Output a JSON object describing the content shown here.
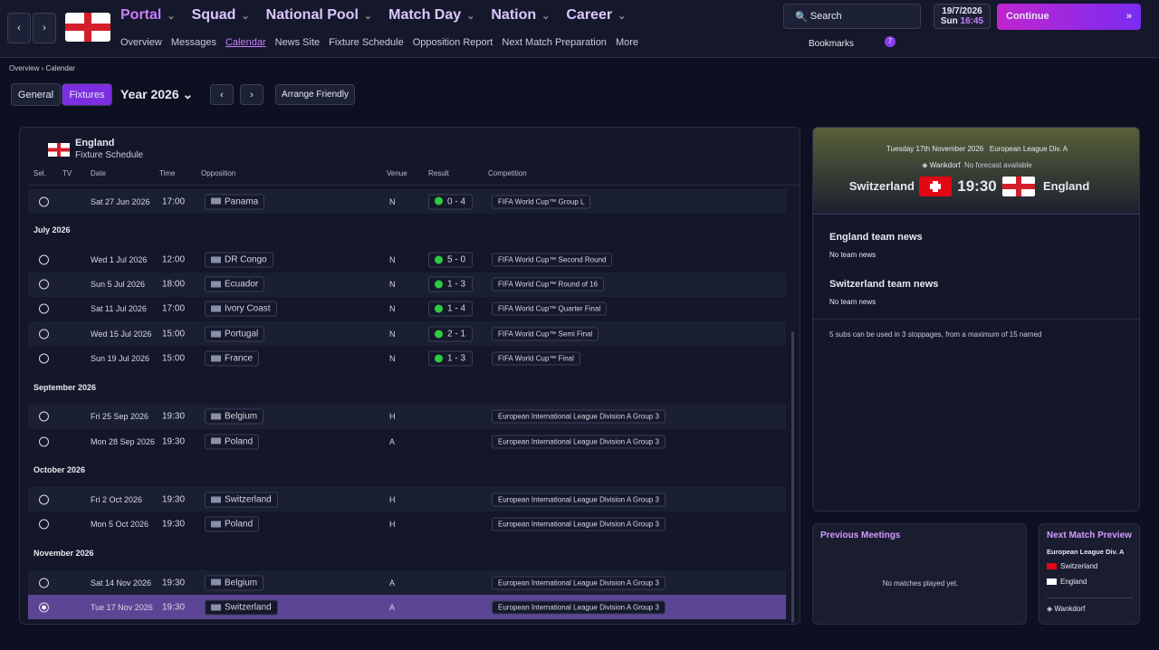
{
  "nav": {
    "primary": [
      "Portal",
      "Squad",
      "National Pool",
      "Match Day",
      "Nation",
      "Career"
    ],
    "secondary": [
      "Overview",
      "Messages",
      "Calendar",
      "News Site",
      "Fixture Schedule",
      "Opposition Report",
      "Next Match Preparation",
      "More"
    ],
    "search": "Search",
    "date": "19/7/2026",
    "day": "Sun",
    "time": "16:45",
    "continue": "Continue",
    "bookmarks": "Bookmarks",
    "badge": "7"
  },
  "breadcrumb": [
    "Overview",
    "Calendar"
  ],
  "toolbar": {
    "tabs": [
      "General",
      "Fixtures"
    ],
    "year": "Year 2026",
    "arrange": "Arrange Friendly"
  },
  "schedule": {
    "team": "England",
    "subtitle": "Fixture Schedule",
    "columns": [
      "Sel.",
      "TV",
      "Date",
      "Time",
      "Opposition",
      "Venue",
      "Result",
      "Competition"
    ],
    "sections": [
      {
        "rows": [
          {
            "date": "Sat 27 Jun 2026",
            "time": "17:00",
            "opposition": "Panama",
            "venue": "N",
            "result": "0 - 4",
            "competition": "FIFA World Cup™ Group L"
          }
        ]
      },
      {
        "month": "July 2026",
        "rows": [
          {
            "date": "Wed 1 Jul 2026",
            "time": "12:00",
            "opposition": "DR Congo",
            "venue": "N",
            "result": "5 - 0",
            "competition": "FIFA World Cup™ Second Round"
          },
          {
            "date": "Sun 5 Jul 2026",
            "time": "18:00",
            "opposition": "Ecuador",
            "venue": "N",
            "result": "1 - 3",
            "competition": "FIFA World Cup™ Round of 16"
          },
          {
            "date": "Sat 11 Jul 2026",
            "time": "17:00",
            "opposition": "Ivory Coast",
            "venue": "N",
            "result": "1 - 4",
            "competition": "FIFA World Cup™ Quarter Final"
          },
          {
            "date": "Wed 15 Jul 2026",
            "time": "15:00",
            "opposition": "Portugal",
            "venue": "N",
            "result": "2 - 1",
            "competition": "FIFA World Cup™ Semi Final"
          },
          {
            "date": "Sun 19 Jul 2026",
            "time": "15:00",
            "opposition": "France",
            "venue": "N",
            "result": "1 - 3",
            "competition": "FIFA World Cup™ Final"
          }
        ]
      },
      {
        "month": "September 2026",
        "rows": [
          {
            "date": "Fri 25 Sep 2026",
            "time": "19:30",
            "opposition": "Belgium",
            "venue": "H",
            "competition": "European International League Division A Group 3"
          },
          {
            "date": "Mon 28 Sep 2026",
            "time": "19:30",
            "opposition": "Poland",
            "venue": "A",
            "competition": "European International League Division A Group 3"
          }
        ]
      },
      {
        "month": "October 2026",
        "rows": [
          {
            "date": "Fri 2 Oct 2026",
            "time": "19:30",
            "opposition": "Switzerland",
            "venue": "H",
            "competition": "European International League Division A Group 3"
          },
          {
            "date": "Mon 5 Oct 2026",
            "time": "19:30",
            "opposition": "Poland",
            "venue": "H",
            "competition": "European International League Division A Group 3"
          }
        ]
      },
      {
        "month": "November 2026",
        "rows": [
          {
            "date": "Sat 14 Nov 2026",
            "time": "19:30",
            "opposition": "Belgium",
            "venue": "A",
            "competition": "European International League Division A Group 3"
          },
          {
            "date": "Tue 17 Nov 2026",
            "time": "19:30",
            "opposition": "Switzerland",
            "venue": "A",
            "competition": "European International League Division A Group 3"
          }
        ]
      }
    ]
  },
  "match": {
    "date": "Tuesday 17th November 2026",
    "competition": "European League Div. A",
    "stadium": "Wankdorf",
    "forecast": "No forecast available",
    "home": "Switzerland",
    "time": "19:30",
    "away": "England",
    "news": [
      {
        "title": "England team news",
        "text": "No team news"
      },
      {
        "title": "Switzerland team news",
        "text": "No team news"
      }
    ],
    "subs": "5 subs can be used in 3 stoppages, from a maximum of 15 named"
  },
  "previous": {
    "title": "Previous Meetings",
    "text": "No matches played yet."
  },
  "preview": {
    "title": "Next Match Preview",
    "competition": "European League Div. A",
    "teams": [
      "Switzerland",
      "England"
    ],
    "stadium": "Wankdorf"
  }
}
